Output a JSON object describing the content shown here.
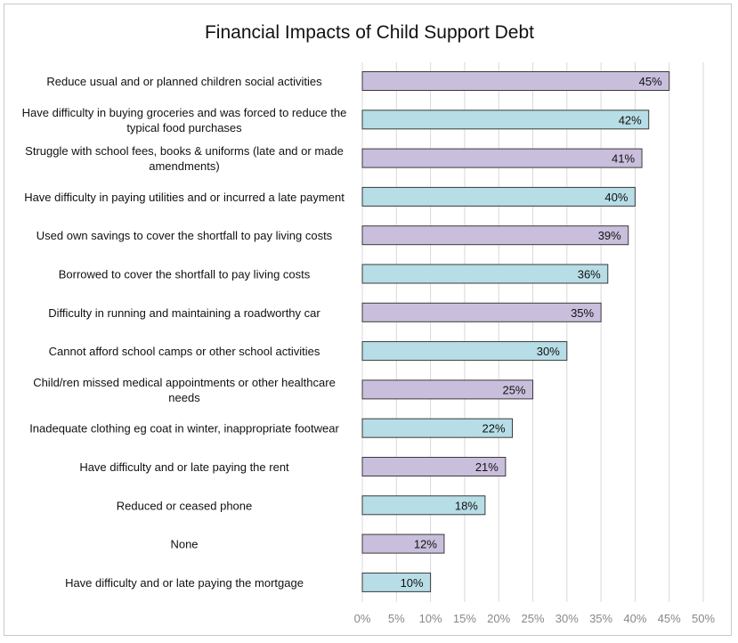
{
  "chart_data": {
    "type": "bar",
    "orientation": "horizontal",
    "title": "Financial Impacts of Child Support Debt",
    "xlabel": "",
    "ylabel": "",
    "xlim": [
      0,
      50
    ],
    "ticks": [
      "0%",
      "5%",
      "10%",
      "15%",
      "20%",
      "25%",
      "30%",
      "35%",
      "40%",
      "45%",
      "50%"
    ],
    "grid": true,
    "categories": [
      [
        "Reduce usual and or planned children social activities"
      ],
      [
        "Have difficulty in buying groceries and was forced to reduce the",
        "typical food purchases"
      ],
      [
        "Struggle with school fees, books & uniforms (late and or made",
        "amendments)"
      ],
      [
        "Have difficulty in paying utilities and or incurred a late payment"
      ],
      [
        "Used own savings to cover the shortfall to pay living costs"
      ],
      [
        "Borrowed to cover the shortfall to pay living costs"
      ],
      [
        "Difficulty in running and maintaining a roadworthy car"
      ],
      [
        "Cannot afford school camps or other school activities"
      ],
      [
        "Child/ren missed medical appointments or other healthcare",
        "needs"
      ],
      [
        "Inadequate clothing eg coat in winter, inappropriate footwear"
      ],
      [
        "Have difficulty and or late paying the rent"
      ],
      [
        "Reduced or ceased phone"
      ],
      [
        "None"
      ],
      [
        "Have difficulty and or late paying the mortgage"
      ]
    ],
    "values": [
      45,
      42,
      41,
      40,
      39,
      36,
      35,
      30,
      25,
      22,
      21,
      18,
      12,
      10
    ],
    "data_labels": [
      "45%",
      "42%",
      "41%",
      "40%",
      "39%",
      "36%",
      "35%",
      "30%",
      "25%",
      "22%",
      "21%",
      "18%",
      "12%",
      "10%"
    ],
    "colors": [
      "#c9bfdc",
      "#b7dde6"
    ]
  }
}
